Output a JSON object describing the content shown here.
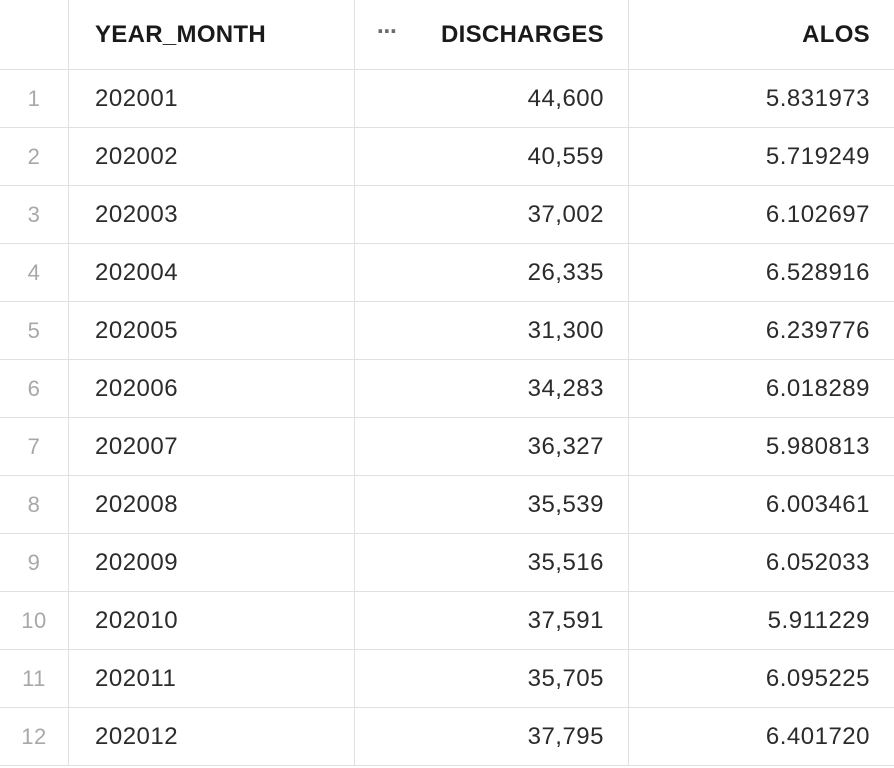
{
  "table": {
    "columns": {
      "row_num": "",
      "year_month": "YEAR_MONTH",
      "discharges": "DISCHARGES",
      "alos": "ALOS"
    },
    "column_menu_icon": "⋯",
    "rows": [
      {
        "n": "1",
        "year_month": "202001",
        "discharges": "44,600",
        "alos": "5.831973"
      },
      {
        "n": "2",
        "year_month": "202002",
        "discharges": "40,559",
        "alos": "5.719249"
      },
      {
        "n": "3",
        "year_month": "202003",
        "discharges": "37,002",
        "alos": "6.102697"
      },
      {
        "n": "4",
        "year_month": "202004",
        "discharges": "26,335",
        "alos": "6.528916"
      },
      {
        "n": "5",
        "year_month": "202005",
        "discharges": "31,300",
        "alos": "6.239776"
      },
      {
        "n": "6",
        "year_month": "202006",
        "discharges": "34,283",
        "alos": "6.018289"
      },
      {
        "n": "7",
        "year_month": "202007",
        "discharges": "36,327",
        "alos": "5.980813"
      },
      {
        "n": "8",
        "year_month": "202008",
        "discharges": "35,539",
        "alos": "6.003461"
      },
      {
        "n": "9",
        "year_month": "202009",
        "discharges": "35,516",
        "alos": "6.052033"
      },
      {
        "n": "10",
        "year_month": "202010",
        "discharges": "37,591",
        "alos": "5.911229"
      },
      {
        "n": "11",
        "year_month": "202011",
        "discharges": "35,705",
        "alos": "6.095225"
      },
      {
        "n": "12",
        "year_month": "202012",
        "discharges": "37,795",
        "alos": "6.401720"
      }
    ]
  }
}
